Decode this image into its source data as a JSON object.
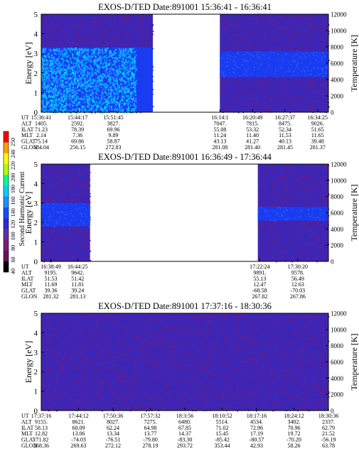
{
  "chart_data": [
    {
      "type": "heatmap",
      "title": "EXOS-D/TED   Date:891001   15:36:41 - 16:36:41",
      "ylabel": "Energy [eV]",
      "y2label": "Temperature [K]",
      "ylim": [
        0,
        5
      ],
      "y2lim": [
        0,
        12000
      ],
      "yticks": [
        "0",
        "1",
        "2",
        "3",
        "4",
        "5"
      ],
      "y2ticks": [
        "0",
        "2000",
        "4000",
        "6000",
        "8000",
        "10000",
        "12000"
      ],
      "data_gap": [
        "16:00",
        "16:14"
      ],
      "segments": [
        {
          "start": "15:36:41",
          "end": "16:00:00",
          "band_low": 0.0,
          "band_high": 3.3,
          "level": "mixed"
        },
        {
          "start": "16:14:00",
          "end": "16:36:41",
          "band_low": 1.8,
          "band_high": 3.1,
          "level": 100
        }
      ],
      "aux_labels": [
        "UT",
        "ALT",
        "ILAT",
        "MLT",
        "GLAT",
        "GLON"
      ],
      "aux_columns": [
        {
          "UT": "15:36:41",
          "ALT": "1405.",
          "ILAT": "71.23",
          "MLT": "2.14",
          "GLAT": "75.14",
          "GLON": "184.04"
        },
        {
          "UT": "15:44:17",
          "ALT": "2592.",
          "ILAT": "78.39",
          "MLT": "7.36",
          "GLAT": "69.86",
          "GLON": "256.15"
        },
        {
          "UT": "15:51:45",
          "ALT": "3827.",
          "ILAT": "69.96",
          "MLT": "9.89",
          "GLAT": "58.87",
          "GLON": "272.83"
        },
        {
          "UT": "16:14:1",
          "ALT": "7047.",
          "ILAT": "55.08",
          "MLT": "11.24",
          "GLAT": "43.13",
          "GLON": "281.08"
        },
        {
          "UT": "16:20:49",
          "ALT": "7815.",
          "ILAT": "53.32",
          "MLT": "11.40",
          "GLAT": "41.27",
          "GLON": "281.40"
        },
        {
          "UT": "16:27:37",
          "ALT": "8475.",
          "ILAT": "52.34",
          "MLT": "11.53",
          "GLAT": "40.13",
          "GLON": "281.45"
        },
        {
          "UT": "16:34:25",
          "ALT": "9026.",
          "ILAT": "51.65",
          "MLT": "11.65",
          "GLAT": "39.48",
          "GLON": "281.37"
        }
      ]
    },
    {
      "type": "heatmap",
      "title": "EXOS-D/TED   Date:891001   16:36:49 - 17:36:44",
      "ylabel": "Energy [eV]",
      "y2label": "Temperature [K]",
      "ylim": [
        0,
        5
      ],
      "y2lim": [
        0,
        12000
      ],
      "yticks": [
        "0",
        "1",
        "2",
        "3",
        "4",
        "5"
      ],
      "y2ticks": [
        "0",
        "2000",
        "4000",
        "6000",
        "8000",
        "10000",
        "12000"
      ],
      "data_gap": [
        "16:47",
        "17:22"
      ],
      "segments": [
        {
          "start": "16:36:49",
          "end": "16:47:00",
          "band_low": 1.8,
          "band_high": 3.0,
          "level": 100
        },
        {
          "start": "17:22:00",
          "end": "17:36:44",
          "band_low": 2.1,
          "band_high": 2.8,
          "level": 100
        }
      ],
      "aux_labels": [
        "UT",
        "ALT",
        "ILAT",
        "MLT",
        "GLAT",
        "GLON"
      ],
      "aux_columns": [
        {
          "UT": "16:38:49",
          "ALT": "9195.",
          "ILAT": "51.53",
          "MLT": "11.69",
          "GLAT": "39.36",
          "GLON": "281.32"
        },
        {
          "UT": "16:44:25",
          "ALT": "9642.",
          "ILAT": "51.42",
          "MLT": "11.81",
          "GLAT": "39.24",
          "GLON": "281.13"
        },
        {
          "UT": "17:22:24",
          "ALT": "9891.",
          "ILAT": "55.13",
          "MLT": "12.47",
          "GLAT": "-68.58",
          "GLON": "267.82"
        },
        {
          "UT": "17:30:20",
          "ALT": "9578.",
          "ILAT": "56.49",
          "MLT": "12.63",
          "GLAT": "-70.03",
          "GLON": "267.86"
        }
      ]
    },
    {
      "type": "heatmap",
      "title": "EXOS-D/TED   Date:891001   17:37:16 - 18:30:36",
      "ylabel": "Energy [eV]",
      "y2label": "Temperature [K]",
      "ylim": [
        0,
        5
      ],
      "y2lim": [
        0,
        12000
      ],
      "yticks": [
        "0",
        "1",
        "2",
        "3",
        "4",
        "5"
      ],
      "y2ticks": [
        "0",
        "2000",
        "4000",
        "6000",
        "8000",
        "10000",
        "12000"
      ],
      "data_gap": null,
      "segments": [
        {
          "start": "17:37:16",
          "end": "18:30:36",
          "band_low": 0.0,
          "band_high": 5.0,
          "level": 80
        }
      ],
      "aux_labels": [
        "UT",
        "ALT",
        "ILAT",
        "MLT",
        "GLAT",
        "GLON"
      ],
      "aux_columns": [
        {
          "UT": "17:37:16",
          "ALT": "9155.",
          "ILAT": "58.13",
          "MLT": "12.82",
          "GLAT": "-71.82",
          "GLON": "268.36"
        },
        {
          "UT": "17:44:12",
          "ALT": "8621.",
          "ILAT": "60.09",
          "MLT": "13.06",
          "GLAT": "-74.03",
          "GLON": "269.63"
        },
        {
          "UT": "17:50:36",
          "ALT": "8027.",
          "ILAT": "62.24",
          "MLT": "13.34",
          "GLAT": "-76.51",
          "GLON": "272.12"
        },
        {
          "UT": "17:57:32",
          "ALT": "7275.",
          "ILAT": "64.98",
          "MLT": "13.77",
          "GLAT": "-79.80",
          "GLON": "278.19"
        },
        {
          "UT": "18:3:56",
          "ALT": "6480.",
          "ILAT": "67.85",
          "MLT": "14.37",
          "GLAT": "-83.30",
          "GLON": "293.72"
        },
        {
          "UT": "18:10:52",
          "ALT": "5514.",
          "ILAT": "71.02",
          "MLT": "15.45",
          "GLAT": "-85.42",
          "GLON": "353.44"
        },
        {
          "UT": "18:17:16",
          "ALT": "4534.",
          "ILAT": "72.96",
          "MLT": "17.19",
          "GLAT": "-80.57",
          "GLON": "42.93"
        },
        {
          "UT": "18:24:12",
          "ALT": "3402.",
          "ILAT": "70.96",
          "MLT": "19.72",
          "GLAT": "-70.20",
          "GLON": "58.26"
        },
        {
          "UT": "18:30:36",
          "ALT": "2337.",
          "ILAT": "62.79",
          "MLT": "21.52",
          "GLAT": "-56.19",
          "GLON": "63.78"
        }
      ]
    }
  ],
  "colorbar": {
    "label": "Second Harmonic Current",
    "ticks": [
      "40",
      "60",
      "80",
      "100",
      "120",
      "140",
      "160",
      "180",
      "200",
      "220",
      "240",
      "250"
    ],
    "colors": [
      "#000000",
      "#6b0f5a",
      "#7a1a7a",
      "#6030a0",
      "#2a2ad8",
      "#1050ff",
      "#1e90ff",
      "#00d0ff",
      "#00ff90",
      "#b0ff00",
      "#ffff00",
      "#ffa000",
      "#ff0000"
    ]
  }
}
